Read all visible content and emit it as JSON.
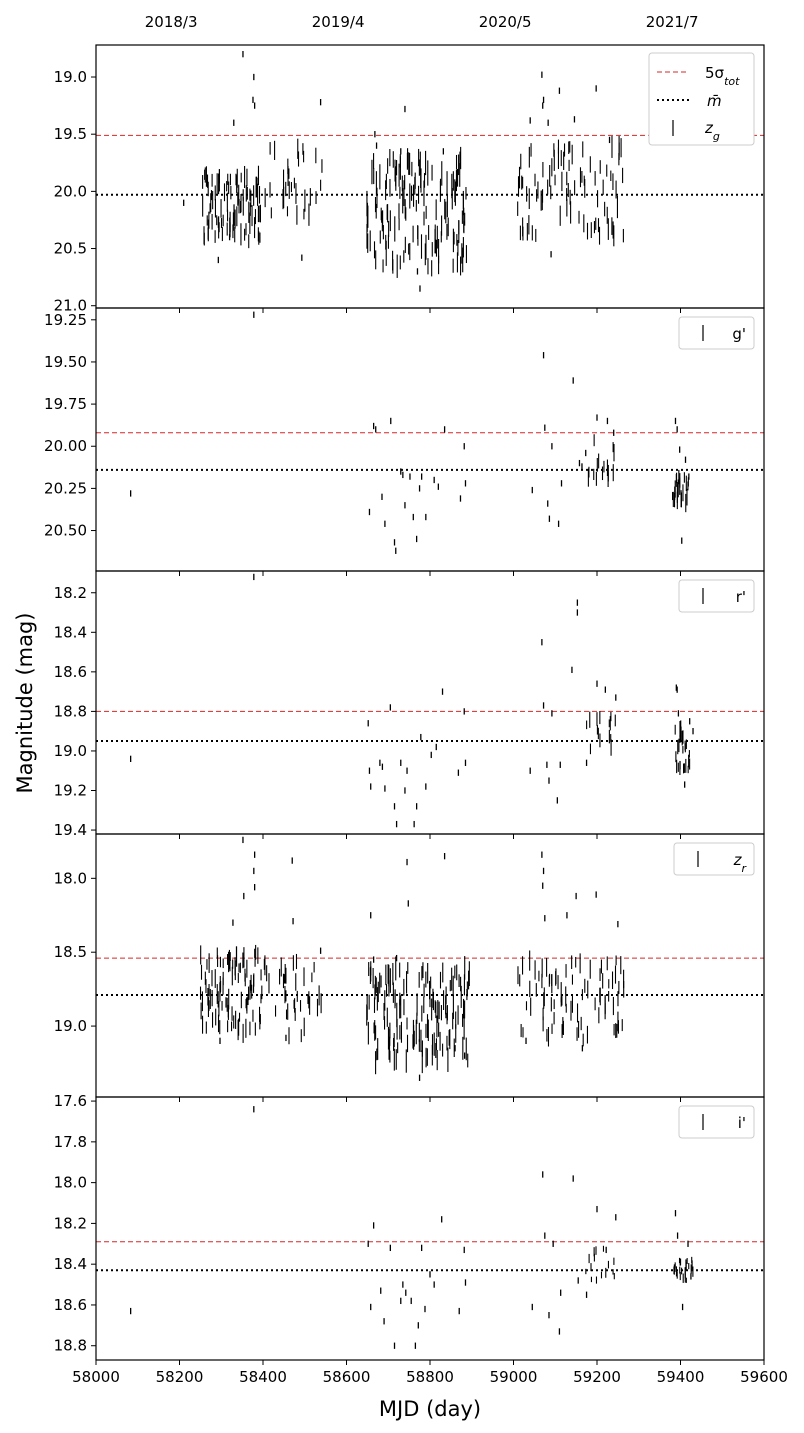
{
  "chart_data": {
    "type": "scatter",
    "title": "",
    "xlabel": "MJD (day)",
    "ylabel": "Magnitude (mag)",
    "xlim": [
      58000,
      59600
    ],
    "x_ticks": [
      "58000",
      "58200",
      "58400",
      "58600",
      "58800",
      "59000",
      "59200",
      "59400",
      "59600"
    ],
    "secondary_x_labels": [
      {
        "mjd": 58180,
        "label": "2018/3"
      },
      {
        "mjd": 58580,
        "label": "2019/4"
      },
      {
        "mjd": 58980,
        "label": "2020/5"
      },
      {
        "mjd": 59380,
        "label": "2021/7"
      }
    ],
    "legend_placement": "top-right",
    "grid": false,
    "colors": {
      "points": "#000000",
      "sigma_line": "#d62728",
      "mean_line": "#000000"
    },
    "legend_labels": {
      "sigma": "5σ_tot",
      "mean": "m̄"
    },
    "panels": [
      {
        "name": "z_g",
        "y_inverted": true,
        "ylim": [
          18.72,
          21.02
        ],
        "y_ticks": [
          "19.0",
          "19.5",
          "20.0",
          "20.5",
          "21.0"
        ],
        "mean": 20.03,
        "five_sigma": 19.51,
        "legend": [
          "5σ_tot",
          "m̄",
          "z_g"
        ],
        "clusters": [
          {
            "x0": 58255,
            "x1": 58400,
            "n": 95,
            "ymin": 19.85,
            "ymax": 20.45,
            "err": 0.07
          },
          {
            "x0": 58400,
            "x1": 58545,
            "n": 30,
            "ymin": 19.6,
            "ymax": 20.25,
            "err": 0.07
          },
          {
            "x0": 58648,
            "x1": 58890,
            "n": 150,
            "ymin": 19.7,
            "ymax": 20.7,
            "err": 0.08
          },
          {
            "x0": 59010,
            "x1": 59265,
            "n": 85,
            "ymin": 19.6,
            "ymax": 20.4,
            "err": 0.07
          }
        ],
        "points": [
          [
            58352,
            18.8
          ],
          [
            58378,
            19.0
          ],
          [
            58376,
            19.2
          ],
          [
            58380,
            19.25
          ],
          [
            58538,
            19.22
          ],
          [
            58740,
            19.28
          ],
          [
            58668,
            19.5
          ],
          [
            58672,
            19.6
          ],
          [
            58730,
            19.65
          ],
          [
            58832,
            19.65
          ],
          [
            59068,
            18.98
          ],
          [
            59072,
            19.2
          ],
          [
            59070,
            19.25
          ],
          [
            59110,
            19.12
          ],
          [
            59146,
            19.37
          ],
          [
            59198,
            19.1
          ],
          [
            59040,
            19.38
          ],
          [
            59083,
            19.4
          ],
          [
            59230,
            19.55
          ],
          [
            58293,
            20.6
          ],
          [
            58320,
            20.4
          ],
          [
            58493,
            20.58
          ],
          [
            58776,
            20.85
          ],
          [
            59090,
            20.55
          ],
          [
            58770,
            20.7
          ],
          [
            58210,
            20.1
          ],
          [
            58330,
            19.4
          ]
        ]
      },
      {
        "name": "g'",
        "y_inverted": true,
        "ylim": [
          19.18,
          20.74
        ],
        "y_ticks": [
          "19.25",
          "19.50",
          "19.75",
          "20.00",
          "20.25",
          "20.50"
        ],
        "mean": 20.14,
        "five_sigma": 19.92,
        "legend": [
          "g'"
        ],
        "clusters": [
          {
            "x0": 59380,
            "x1": 59420,
            "n": 25,
            "ymin": 20.18,
            "ymax": 20.34,
            "err": 0.04
          },
          {
            "x0": 59175,
            "x1": 59250,
            "n": 15,
            "ymin": 19.95,
            "ymax": 20.2,
            "err": 0.04
          }
        ],
        "points": [
          [
            58083,
            20.28
          ],
          [
            58378,
            19.22
          ],
          [
            58655,
            20.39
          ],
          [
            58665,
            19.88
          ],
          [
            58670,
            19.9
          ],
          [
            58685,
            20.3
          ],
          [
            58692,
            20.46
          ],
          [
            58706,
            19.85
          ],
          [
            58715,
            20.57
          ],
          [
            58718,
            20.62
          ],
          [
            58730,
            20.15
          ],
          [
            58735,
            20.17
          ],
          [
            58740,
            20.35
          ],
          [
            58752,
            20.18
          ],
          [
            58760,
            20.42
          ],
          [
            58768,
            20.55
          ],
          [
            58775,
            20.25
          ],
          [
            58780,
            20.18
          ],
          [
            58790,
            20.42
          ],
          [
            58810,
            20.2
          ],
          [
            58820,
            20.24
          ],
          [
            58835,
            19.9
          ],
          [
            58873,
            20.31
          ],
          [
            58882,
            20.0
          ],
          [
            58885,
            20.22
          ],
          [
            59045,
            20.26
          ],
          [
            59072,
            19.46
          ],
          [
            59075,
            19.89
          ],
          [
            59082,
            20.34
          ],
          [
            59086,
            20.43
          ],
          [
            59092,
            20.0
          ],
          [
            59108,
            20.46
          ],
          [
            59115,
            20.22
          ],
          [
            59143,
            19.61
          ],
          [
            59158,
            20.1
          ],
          [
            59164,
            20.12
          ],
          [
            59173,
            20.04
          ],
          [
            59200,
            19.83
          ],
          [
            59225,
            19.85
          ],
          [
            59240,
            19.92
          ],
          [
            59388,
            19.85
          ],
          [
            59392,
            19.9
          ],
          [
            59398,
            20.02
          ],
          [
            59403,
            20.56
          ],
          [
            59412,
            20.08
          ],
          [
            59420,
            20.18
          ]
        ]
      },
      {
        "name": "r'",
        "y_inverted": true,
        "ylim": [
          18.09,
          19.42
        ],
        "y_ticks": [
          "18.2",
          "18.4",
          "18.6",
          "18.8",
          "19.0",
          "19.2",
          "19.4"
        ],
        "mean": 18.95,
        "five_sigma": 18.8,
        "legend": [
          "r'"
        ],
        "clusters": [
          {
            "x0": 59385,
            "x1": 59425,
            "n": 25,
            "ymin": 18.88,
            "ymax": 19.1,
            "err": 0.03
          },
          {
            "x0": 59170,
            "x1": 59245,
            "n": 15,
            "ymin": 18.82,
            "ymax": 19.0,
            "err": 0.03
          }
        ],
        "points": [
          [
            58083,
            19.04
          ],
          [
            58378,
            18.12
          ],
          [
            58652,
            18.86
          ],
          [
            58655,
            19.1
          ],
          [
            58658,
            19.18
          ],
          [
            58680,
            19.06
          ],
          [
            58686,
            19.08
          ],
          [
            58692,
            19.19
          ],
          [
            58705,
            18.78
          ],
          [
            58715,
            19.28
          ],
          [
            58720,
            19.37
          ],
          [
            58730,
            19.06
          ],
          [
            58740,
            19.2
          ],
          [
            58745,
            19.1
          ],
          [
            58762,
            19.37
          ],
          [
            58768,
            19.28
          ],
          [
            58778,
            18.93
          ],
          [
            58790,
            19.18
          ],
          [
            58803,
            19.02
          ],
          [
            58815,
            18.98
          ],
          [
            58830,
            18.7
          ],
          [
            58868,
            19.11
          ],
          [
            58882,
            18.8
          ],
          [
            58885,
            19.06
          ],
          [
            59040,
            19.1
          ],
          [
            59068,
            18.45
          ],
          [
            59072,
            18.77
          ],
          [
            59080,
            19.07
          ],
          [
            59085,
            19.15
          ],
          [
            59092,
            18.81
          ],
          [
            59105,
            19.25
          ],
          [
            59112,
            19.07
          ],
          [
            59140,
            18.59
          ],
          [
            59153,
            18.3
          ],
          [
            59153,
            18.25
          ],
          [
            59175,
            19.06
          ],
          [
            59200,
            18.66
          ],
          [
            59220,
            18.69
          ],
          [
            59245,
            18.73
          ],
          [
            59390,
            18.68
          ],
          [
            59392,
            18.69
          ],
          [
            59395,
            18.81
          ],
          [
            59410,
            19.17
          ],
          [
            59422,
            18.85
          ],
          [
            59430,
            18.9
          ]
        ]
      },
      {
        "name": "z_r",
        "y_inverted": true,
        "ylim": [
          17.7,
          19.48
        ],
        "y_ticks": [
          "18.0",
          "18.5",
          "19.0"
        ],
        "mean": 18.79,
        "five_sigma": 18.54,
        "legend": [
          "z_r"
        ],
        "clusters": [
          {
            "x0": 58250,
            "x1": 58400,
            "n": 95,
            "ymin": 18.5,
            "ymax": 19.05,
            "err": 0.05
          },
          {
            "x0": 58400,
            "x1": 58540,
            "n": 35,
            "ymin": 18.55,
            "ymax": 19.1,
            "err": 0.05
          },
          {
            "x0": 58648,
            "x1": 58895,
            "n": 150,
            "ymin": 18.6,
            "ymax": 19.25,
            "err": 0.06
          },
          {
            "x0": 59010,
            "x1": 59265,
            "n": 85,
            "ymin": 18.55,
            "ymax": 19.1,
            "err": 0.05
          }
        ],
        "points": [
          [
            58352,
            17.74
          ],
          [
            58380,
            17.84
          ],
          [
            58378,
            17.95
          ],
          [
            58380,
            18.06
          ],
          [
            58354,
            18.12
          ],
          [
            58470,
            17.88
          ],
          [
            58472,
            18.29
          ],
          [
            58328,
            18.3
          ],
          [
            58538,
            18.49
          ],
          [
            58658,
            18.25
          ],
          [
            58745,
            17.89
          ],
          [
            58748,
            18.17
          ],
          [
            58835,
            17.85
          ],
          [
            58665,
            18.55
          ],
          [
            58720,
            18.54
          ],
          [
            59068,
            17.84
          ],
          [
            59072,
            17.95
          ],
          [
            59070,
            18.05
          ],
          [
            59075,
            18.27
          ],
          [
            59128,
            18.25
          ],
          [
            59150,
            18.12
          ],
          [
            59198,
            18.11
          ],
          [
            59250,
            18.31
          ],
          [
            59165,
            19.15
          ],
          [
            58775,
            19.35
          ],
          [
            58883,
            19.2
          ],
          [
            59030,
            19.1
          ],
          [
            58860,
            19.15
          ],
          [
            58297,
            19.1
          ],
          [
            58455,
            19.08
          ]
        ]
      },
      {
        "name": "i'",
        "y_inverted": true,
        "ylim": [
          17.58,
          18.87
        ],
        "y_ticks": [
          "17.6",
          "17.8",
          "18.0",
          "18.2",
          "18.4",
          "18.6",
          "18.8"
        ],
        "mean": 18.43,
        "five_sigma": 18.29,
        "legend": [
          "i'"
        ],
        "clusters": [
          {
            "x0": 59380,
            "x1": 59430,
            "n": 25,
            "ymin": 18.38,
            "ymax": 18.48,
            "err": 0.02
          },
          {
            "x0": 59165,
            "x1": 59245,
            "n": 15,
            "ymin": 18.32,
            "ymax": 18.48,
            "err": 0.02
          }
        ],
        "points": [
          [
            58083,
            18.63
          ],
          [
            58378,
            17.64
          ],
          [
            58652,
            18.3
          ],
          [
            58658,
            18.61
          ],
          [
            58665,
            18.21
          ],
          [
            58682,
            18.53
          ],
          [
            58690,
            18.68
          ],
          [
            58705,
            18.32
          ],
          [
            58715,
            18.8
          ],
          [
            58730,
            18.58
          ],
          [
            58735,
            18.5
          ],
          [
            58742,
            18.54
          ],
          [
            58755,
            18.58
          ],
          [
            58765,
            18.8
          ],
          [
            58772,
            18.7
          ],
          [
            58780,
            18.32
          ],
          [
            58788,
            18.62
          ],
          [
            58800,
            18.45
          ],
          [
            58810,
            18.5
          ],
          [
            58828,
            18.18
          ],
          [
            58870,
            18.63
          ],
          [
            58882,
            18.33
          ],
          [
            58885,
            18.49
          ],
          [
            59045,
            18.61
          ],
          [
            59070,
            17.96
          ],
          [
            59075,
            18.26
          ],
          [
            59085,
            18.65
          ],
          [
            59095,
            18.3
          ],
          [
            59110,
            18.73
          ],
          [
            59113,
            18.54
          ],
          [
            59143,
            17.98
          ],
          [
            59155,
            18.48
          ],
          [
            59175,
            18.55
          ],
          [
            59200,
            18.13
          ],
          [
            59222,
            18.33
          ],
          [
            59245,
            18.17
          ],
          [
            59388,
            18.15
          ],
          [
            59393,
            18.26
          ],
          [
            59405,
            18.61
          ],
          [
            59418,
            18.3
          ],
          [
            59425,
            18.46
          ]
        ]
      }
    ]
  }
}
